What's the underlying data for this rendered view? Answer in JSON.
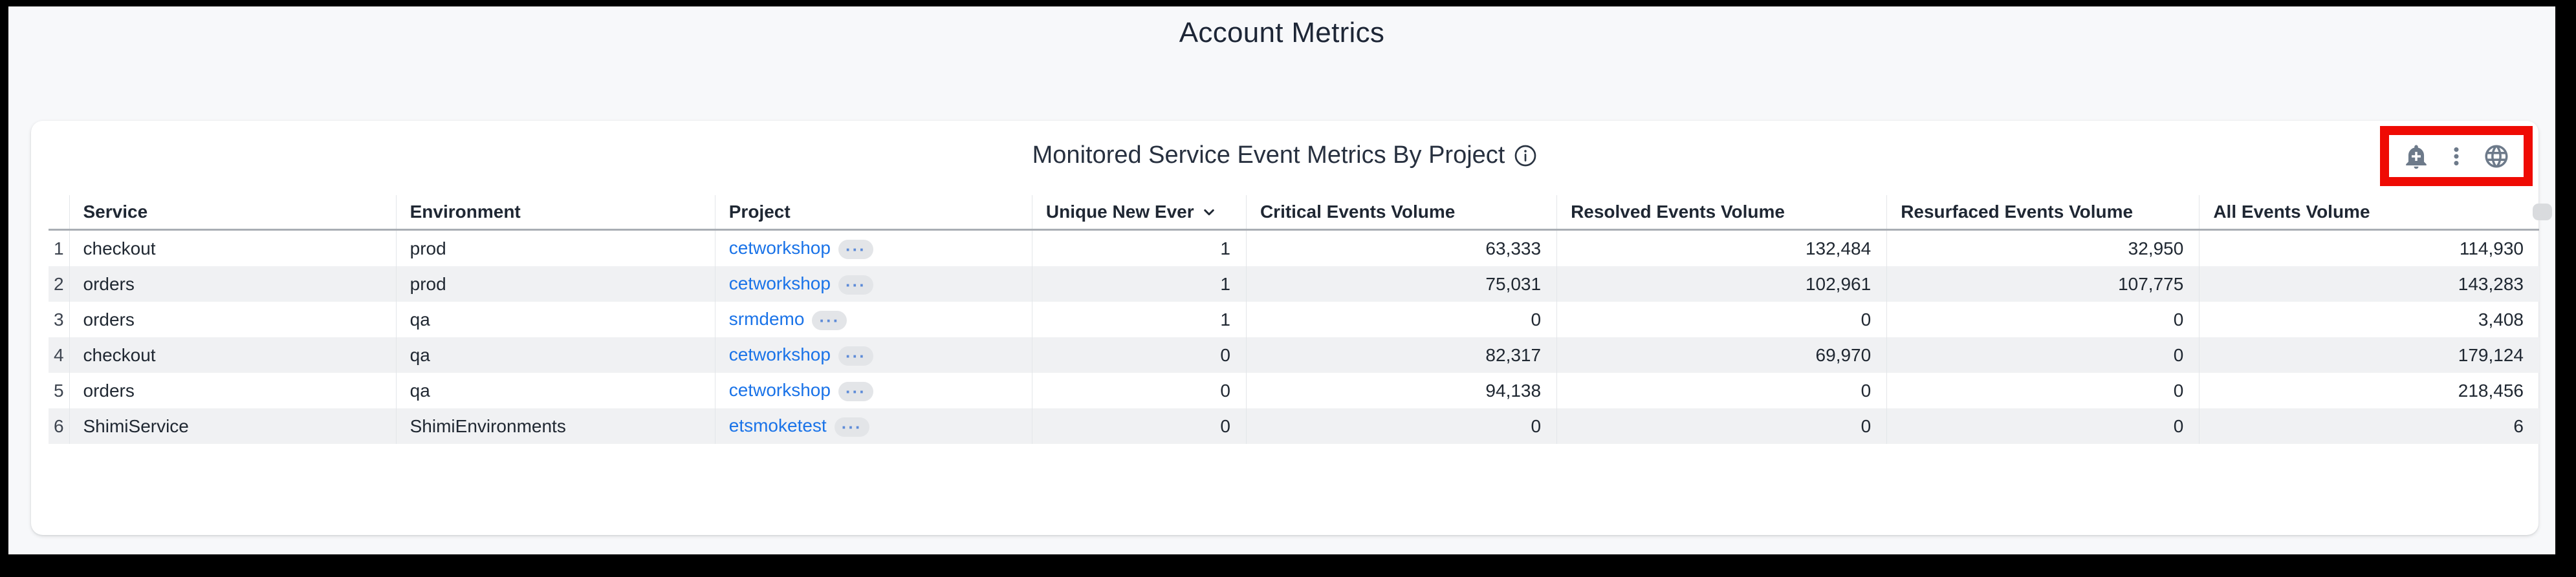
{
  "page": {
    "title": "Account Metrics"
  },
  "panel": {
    "title": "Monitored Service Event Metrics By Project",
    "toolbar": {
      "highlight_color": "#ef0b04",
      "icons": [
        {
          "name": "add-alert-icon"
        },
        {
          "name": "more-options-icon"
        },
        {
          "name": "globe-icon"
        }
      ]
    }
  },
  "table": {
    "columns": [
      {
        "key": "service",
        "label": "Service"
      },
      {
        "key": "environment",
        "label": "Environment"
      },
      {
        "key": "project",
        "label": "Project",
        "type": "link"
      },
      {
        "key": "unique_new_events",
        "label": "Unique New Ever",
        "numeric": true,
        "sort": "desc"
      },
      {
        "key": "critical_events_volume",
        "label": "Critical Events Volume",
        "numeric": true
      },
      {
        "key": "resolved_events_volume",
        "label": "Resolved Events Volume",
        "numeric": true
      },
      {
        "key": "resurfaced_events_volume",
        "label": "Resurfaced Events Volume",
        "numeric": true
      },
      {
        "key": "all_events_volume",
        "label": "All Events Volume",
        "numeric": true
      }
    ],
    "project_more_label": "···",
    "rows": [
      {
        "index": "1",
        "service": "checkout",
        "environment": "prod",
        "project": "cetworkshop",
        "unique_new_events": "1",
        "critical_events_volume": "63,333",
        "resolved_events_volume": "132,484",
        "resurfaced_events_volume": "32,950",
        "all_events_volume": "114,930"
      },
      {
        "index": "2",
        "service": "orders",
        "environment": "prod",
        "project": "cetworkshop",
        "unique_new_events": "1",
        "critical_events_volume": "75,031",
        "resolved_events_volume": "102,961",
        "resurfaced_events_volume": "107,775",
        "all_events_volume": "143,283"
      },
      {
        "index": "3",
        "service": "orders",
        "environment": "qa",
        "project": "srmdemo",
        "unique_new_events": "1",
        "critical_events_volume": "0",
        "resolved_events_volume": "0",
        "resurfaced_events_volume": "0",
        "all_events_volume": "3,408"
      },
      {
        "index": "4",
        "service": "checkout",
        "environment": "qa",
        "project": "cetworkshop",
        "unique_new_events": "0",
        "critical_events_volume": "82,317",
        "resolved_events_volume": "69,970",
        "resurfaced_events_volume": "0",
        "all_events_volume": "179,124"
      },
      {
        "index": "5",
        "service": "orders",
        "environment": "qa",
        "project": "cetworkshop",
        "unique_new_events": "0",
        "critical_events_volume": "94,138",
        "resolved_events_volume": "0",
        "resurfaced_events_volume": "0",
        "all_events_volume": "218,456"
      },
      {
        "index": "6",
        "service": "ShimiService",
        "environment": "ShimiEnvironments",
        "project": "etsmoketest",
        "unique_new_events": "0",
        "critical_events_volume": "0",
        "resolved_events_volume": "0",
        "resurfaced_events_volume": "0",
        "all_events_volume": "6"
      }
    ]
  },
  "colors": {
    "link": "#1a73e8",
    "icon": "#6d7a8a",
    "header_text": "#1f2733",
    "body_text": "#202832",
    "row_alt": "#f0f1f3",
    "page_background": "#f7f8fa"
  }
}
